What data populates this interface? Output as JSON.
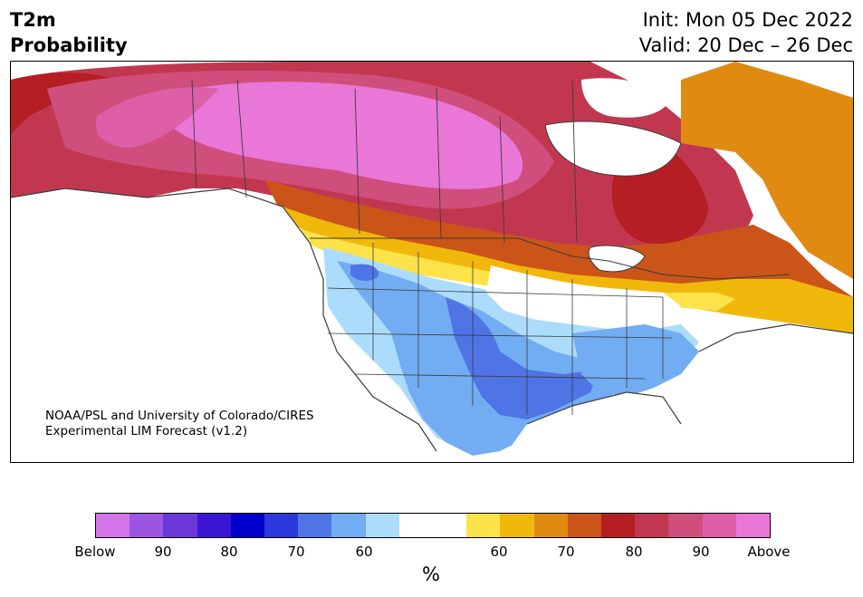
{
  "header": {
    "title_line1": "T2m",
    "title_line2": "Probability",
    "init": "Init: Mon 05 Dec 2022",
    "valid": "Valid: 20 Dec – 26 Dec"
  },
  "credit": {
    "line1": "NOAA/PSL and University of Colorado/CIRES",
    "line2": "Experimental LIM Forecast (v1.2)"
  },
  "colorbar": {
    "unit": "%",
    "colors": [
      "#d475ec",
      "#9c55e0",
      "#6c37d8",
      "#3a16d4",
      "#0000cc",
      "#2a38dc",
      "#4e74e6",
      "#72acf2",
      "#acdcfc",
      "#ffffff",
      "#ffffff",
      "#fde24a",
      "#f1b80c",
      "#e08a12",
      "#cb5419",
      "#b51e22",
      "#c23750",
      "#d04e7c",
      "#dc5fa8",
      "#e877d8"
    ],
    "tick_labels": [
      "Below",
      "90",
      "80",
      "70",
      "60",
      "60",
      "70",
      "80",
      "90",
      "Above"
    ]
  },
  "map": {
    "land_default": "#ffffff",
    "border_color": "#3c3c3c"
  }
}
